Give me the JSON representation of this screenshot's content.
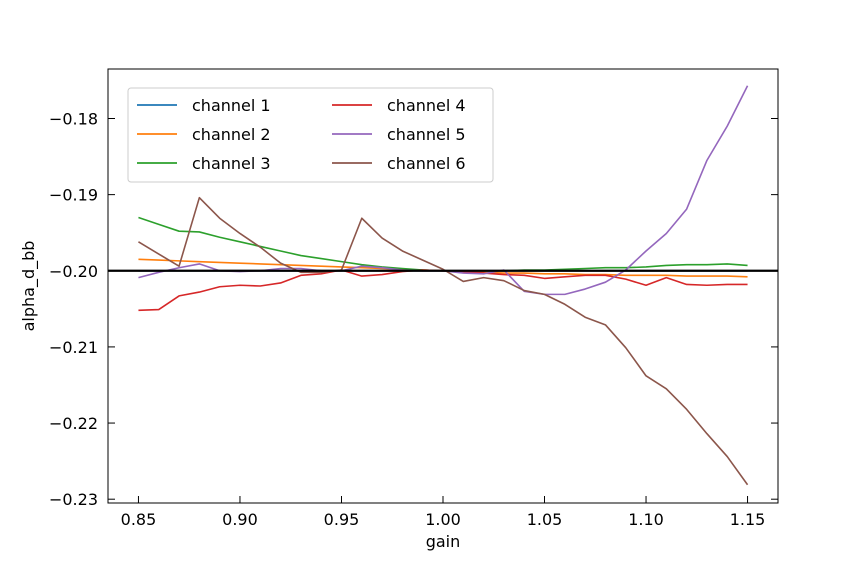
{
  "chart_data": {
    "type": "line",
    "title": "",
    "xlabel": "gain",
    "ylabel": "alpha_d_bb",
    "xlim": [
      0.835,
      1.165
    ],
    "ylim": [
      -0.2305,
      -0.1735
    ],
    "xticks": [
      0.85,
      0.9,
      0.95,
      1.0,
      1.05,
      1.1,
      1.15
    ],
    "xtick_labels": [
      "0.85",
      "0.90",
      "0.95",
      "1.00",
      "1.05",
      "1.10",
      "1.15"
    ],
    "yticks": [
      -0.23,
      -0.22,
      -0.21,
      -0.2,
      -0.19,
      -0.18
    ],
    "ytick_labels": [
      "−0.23",
      "−0.22",
      "−0.21",
      "−0.20",
      "−0.19",
      "−0.18"
    ],
    "grid": false,
    "legend": {
      "position": "top-left",
      "columns": 2
    },
    "reference_line": {
      "y": -0.2,
      "color": "#000000"
    },
    "x": [
      0.85,
      0.86,
      0.87,
      0.88,
      0.89,
      0.9,
      0.91,
      0.92,
      0.93,
      0.94,
      0.95,
      0.96,
      0.97,
      0.98,
      0.99,
      1.0,
      1.01,
      1.02,
      1.03,
      1.04,
      1.05,
      1.06,
      1.07,
      1.08,
      1.09,
      1.1,
      1.11,
      1.12,
      1.13,
      1.14,
      1.15
    ],
    "series": [
      {
        "name": "channel 1",
        "color": "#1f77b4",
        "values": [
          -0.2,
          -0.2,
          -0.2,
          -0.2,
          -0.2,
          -0.2,
          -0.2,
          -0.2,
          -0.2,
          -0.2,
          -0.2,
          -0.2,
          -0.2,
          -0.2,
          -0.2,
          -0.2,
          -0.2,
          -0.2,
          -0.2,
          -0.2,
          -0.2,
          -0.2,
          -0.2,
          -0.2,
          -0.2,
          -0.2,
          -0.2,
          -0.2,
          -0.2,
          -0.2,
          -0.2
        ]
      },
      {
        "name": "channel 2",
        "color": "#ff7f0e",
        "values": [
          -0.1985,
          -0.1986,
          -0.1987,
          -0.1988,
          -0.1989,
          -0.199,
          -0.1991,
          -0.1992,
          -0.1993,
          -0.1994,
          -0.1995,
          -0.1996,
          -0.1997,
          -0.1998,
          -0.1999,
          -0.2,
          -0.2001,
          -0.2002,
          -0.2003,
          -0.2003,
          -0.2004,
          -0.2004,
          -0.2005,
          -0.2005,
          -0.2006,
          -0.2006,
          -0.2006,
          -0.2007,
          -0.2007,
          -0.2007,
          -0.2008
        ]
      },
      {
        "name": "channel 3",
        "color": "#2ca02c",
        "values": [
          -0.193,
          -0.1939,
          -0.1948,
          -0.1949,
          -0.1956,
          -0.1962,
          -0.1968,
          -0.1974,
          -0.198,
          -0.1984,
          -0.1988,
          -0.1992,
          -0.1995,
          -0.1997,
          -0.1999,
          -0.2,
          -0.2,
          -0.2,
          -0.2,
          -0.1999,
          -0.1999,
          -0.1998,
          -0.1997,
          -0.1996,
          -0.1996,
          -0.1995,
          -0.1993,
          -0.1992,
          -0.1992,
          -0.1991,
          -0.1993
        ]
      },
      {
        "name": "channel 4",
        "color": "#d62728",
        "values": [
          -0.2052,
          -0.2051,
          -0.2033,
          -0.2028,
          -0.2021,
          -0.2019,
          -0.202,
          -0.2016,
          -0.2006,
          -0.2004,
          -0.1999,
          -0.2007,
          -0.2005,
          -0.2001,
          -0.1999,
          -0.2,
          -0.2001,
          -0.2003,
          -0.2005,
          -0.2006,
          -0.201,
          -0.2008,
          -0.2006,
          -0.2006,
          -0.2011,
          -0.2019,
          -0.2009,
          -0.2018,
          -0.2019,
          -0.2018,
          -0.2018
        ]
      },
      {
        "name": "channel 5",
        "color": "#9467bd",
        "values": [
          -0.2009,
          -0.2002,
          -0.1996,
          -0.1991,
          -0.2,
          -0.2001,
          -0.2,
          -0.1997,
          -0.1997,
          -0.2,
          -0.2,
          -0.1994,
          -0.1996,
          -0.1999,
          -0.2,
          -0.2,
          -0.2003,
          -0.2004,
          -0.1999,
          -0.2027,
          -0.2031,
          -0.2031,
          -0.2024,
          -0.2015,
          -0.1999,
          -0.1974,
          -0.1951,
          -0.1919,
          -0.1855,
          -0.181,
          -0.1757
        ]
      },
      {
        "name": "channel 6",
        "color": "#8c564b",
        "values": [
          -0.1962,
          -0.1978,
          -0.1994,
          -0.1904,
          -0.1931,
          -0.1951,
          -0.1969,
          -0.199,
          -0.2002,
          -0.2002,
          -0.1999,
          -0.1931,
          -0.1957,
          -0.1974,
          -0.1986,
          -0.1998,
          -0.2014,
          -0.2009,
          -0.2013,
          -0.2026,
          -0.2031,
          -0.2044,
          -0.2061,
          -0.2071,
          -0.2101,
          -0.2138,
          -0.2155,
          -0.2182,
          -0.2214,
          -0.2244,
          -0.2281
        ]
      }
    ]
  }
}
